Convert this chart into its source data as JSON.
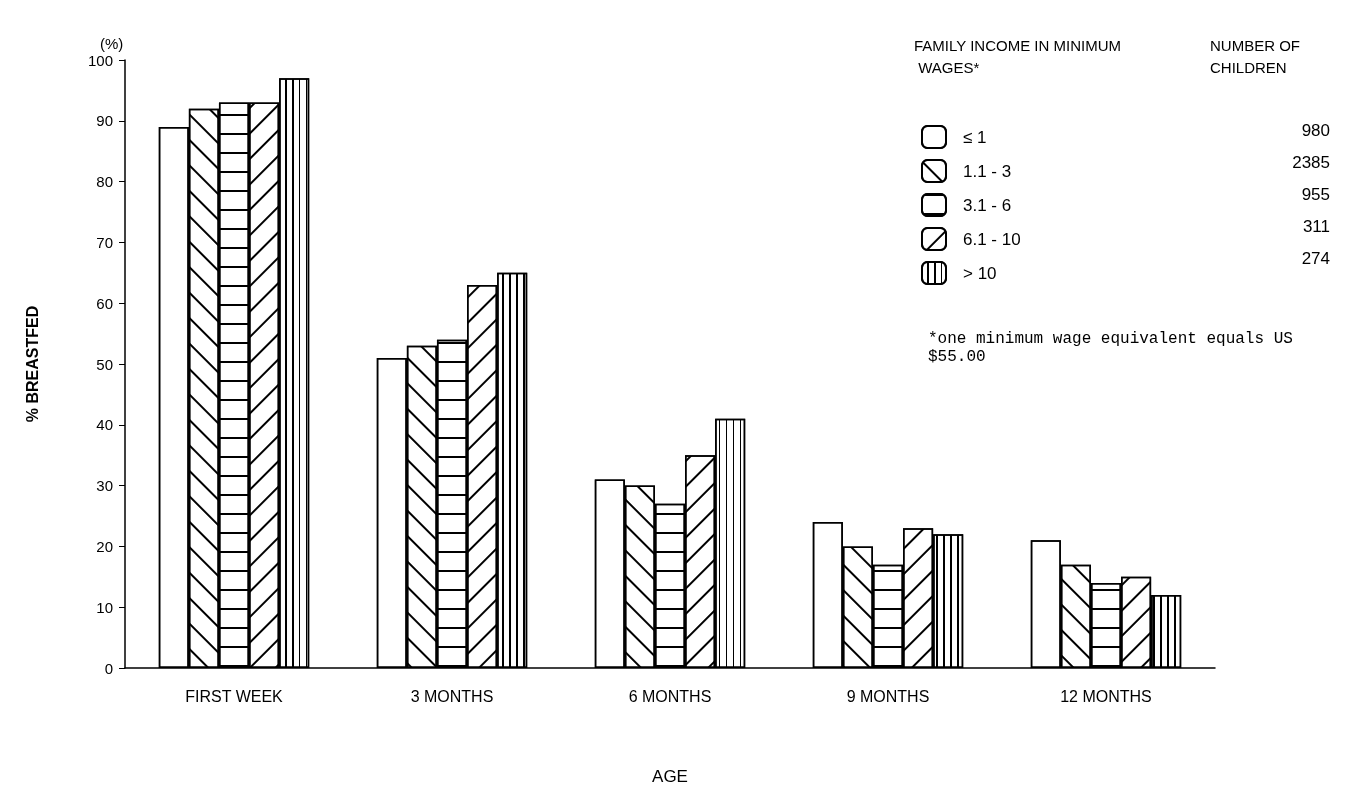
{
  "chart_data": {
    "type": "bar",
    "xlabel": "AGE",
    "ylabel": "% BREASTFED",
    "legend_title": "FAMILY INCOME IN MINIMUM WAGES*",
    "categories": [
      "FIRST WEEK",
      "3 MONTHS",
      "6 MONTHS",
      "9 MONTHS",
      "12 MONTHS"
    ],
    "series": [
      {
        "name": "≤ 1",
        "color": "#ffffff",
        "values": [
          89,
          51,
          31,
          24,
          21
        ]
      },
      {
        "name": "1.1 - 3",
        "color": "#ffffff",
        "values": [
          92,
          53,
          30,
          20,
          17
        ]
      },
      {
        "name": "3.1 - 6",
        "color": "#ffffff",
        "values": [
          93,
          54,
          27,
          17,
          14
        ]
      },
      {
        "name": "6.1 - 10",
        "color": "#ffffff",
        "values": [
          93,
          63,
          35,
          23,
          15
        ]
      },
      {
        "name": "> 10",
        "color": "#ffffff",
        "values": [
          97,
          65,
          41,
          22,
          12
        ]
      }
    ],
    "ylim": [
      0,
      100
    ],
    "yticks": [
      0,
      10,
      20,
      30,
      40,
      50,
      60,
      70,
      80,
      90,
      100
    ],
    "grid": false,
    "legend": "top right",
    "annotations": [
      "(%)",
      "NUMBER OF CHILDREN",
      "980",
      "2385",
      "955",
      "311",
      "274",
      "*one minimum wage equivalent equals US $55.00"
    ]
  }
}
